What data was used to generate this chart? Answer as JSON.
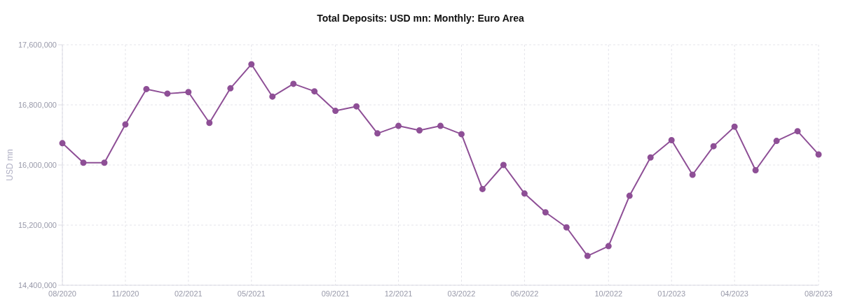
{
  "chart_data": {
    "type": "line",
    "title": "Total Deposits: USD mn: Monthly: Euro Area",
    "ylabel": "USD mn",
    "categories": [
      "08/2020",
      null,
      null,
      "11/2020",
      null,
      null,
      "02/2021",
      null,
      null,
      "05/2021",
      null,
      null,
      null,
      "09/2021",
      null,
      null,
      "12/2021",
      null,
      null,
      "03/2022",
      null,
      null,
      "06/2022",
      null,
      null,
      null,
      "10/2022",
      null,
      null,
      "01/2023",
      null,
      null,
      "04/2023",
      null,
      null,
      null,
      "08/2023"
    ],
    "series": [
      {
        "color": "#8e4f96",
        "values": [
          16290000,
          16030000,
          16030000,
          16540000,
          17010000,
          16950000,
          16970000,
          16560000,
          17020000,
          17340000,
          16910000,
          17080000,
          16980000,
          16720000,
          16780000,
          16420000,
          16520000,
          16460000,
          16520000,
          16410000,
          15680000,
          16000000,
          15620000,
          15370000,
          15170000,
          14790000,
          14920000,
          15590000,
          16100000,
          16330000,
          15870000,
          16250000,
          16510000,
          15930000,
          16320000,
          16450000,
          16140000
        ]
      }
    ],
    "ylim": [
      14400000,
      17600000
    ],
    "yticks": [
      {
        "value": 14400000,
        "label": "14,400,000"
      },
      {
        "value": 15200000,
        "label": "15,200,000"
      },
      {
        "value": 16000000,
        "label": "16,000,000"
      },
      {
        "value": 16800000,
        "label": "16,800,000"
      },
      {
        "value": 17600000,
        "label": "17,600,000"
      }
    ],
    "grid": true,
    "marker": "circle",
    "line_style": "solid"
  }
}
